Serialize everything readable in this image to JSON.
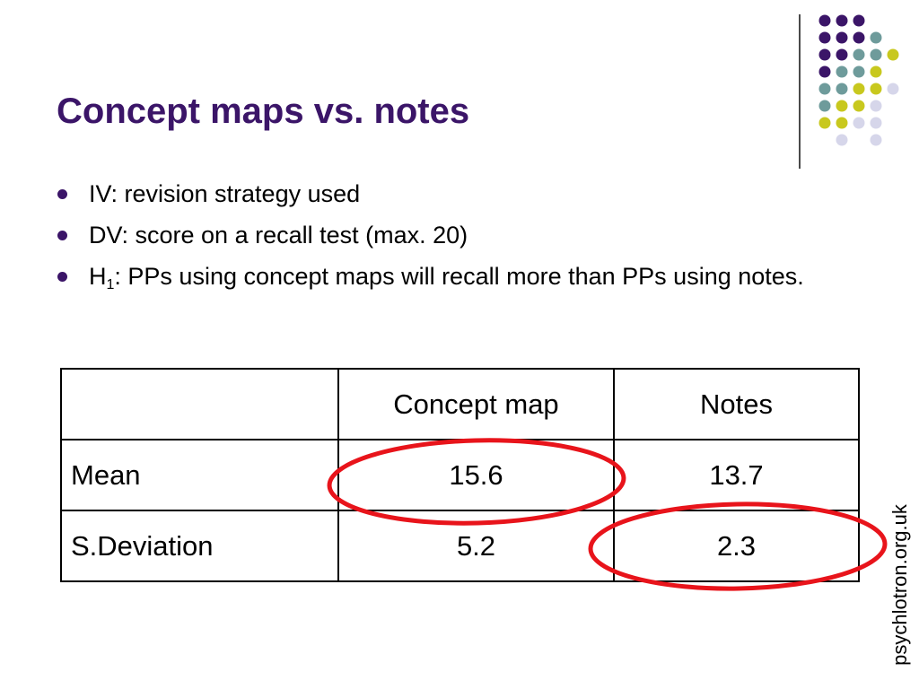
{
  "slide": {
    "title": "Concept maps vs. notes",
    "bullets": [
      {
        "pre": "IV: revision strategy used",
        "sub": "",
        "post": ""
      },
      {
        "pre": "DV: score on a recall test (max. 20)",
        "sub": "",
        "post": ""
      },
      {
        "pre": "H",
        "sub": "1",
        "post": ": PPs using concept maps will recall more than PPs using notes."
      }
    ]
  },
  "table": {
    "header": [
      "",
      "Concept map",
      "Notes"
    ],
    "rows": [
      [
        "Mean",
        "15.6",
        "13.7"
      ],
      [
        "S.Deviation",
        "5.2",
        "2.3"
      ]
    ]
  },
  "annotations": {
    "circle_color": "#e8141b",
    "circled_cells": [
      "mean-concept-map",
      "sd-notes"
    ]
  },
  "footer": {
    "site": "psychlotron.org.uk"
  },
  "theme": {
    "title_color": "#3b1568",
    "dot_colors": [
      "#3b1568",
      "#6e9b9b",
      "#c8c81e",
      "#d6d6ea"
    ]
  }
}
